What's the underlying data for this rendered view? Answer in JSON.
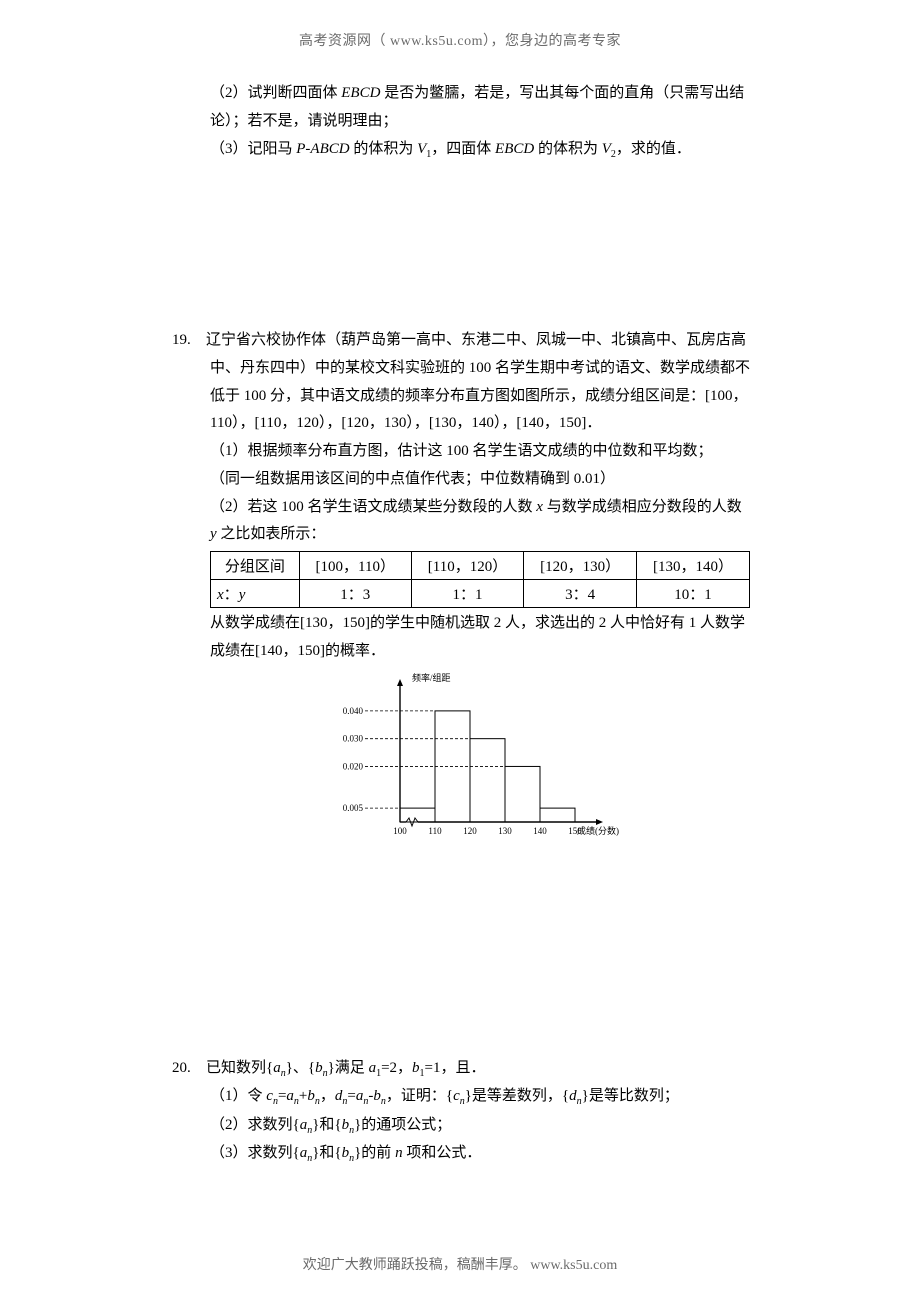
{
  "header": {
    "text": "高考资源网（ www.ks5u.com），您身边的高考专家"
  },
  "footer": {
    "text": "欢迎广大教师踊跃投稿，稿酬丰厚。  www.ks5u.com"
  },
  "q18": {
    "part2": "（2）试判断四面体 EBCD 是否为鳖臑，若是，写出其每个面的直角（只需写出结论）；若不是，请说明理由；",
    "part3": "（3）记阳马 P-ABCD 的体积为 V₁，四面体 EBCD 的体积为 V₂，求的值．"
  },
  "q19": {
    "number": "19.",
    "body_l1": "辽宁省六校协作体（葫芦岛第一高中、东港二中、凤城一中、北镇高中、瓦房店高中、丹东四中）中的某校文科实验班的 100 名学生期中考试的语文、数学成绩都不低于 100 分，其中语文成绩的频率分布直方图如图所示，成绩分组区间是：[100，110），[110，120），[120，130），[130，140），[140，150]．",
    "sub1": "（1）根据频率分布直方图，估计这 100 名学生语文成绩的中位数和平均数；",
    "sub1_note": "（同一组数据用该区间的中点值作代表；中位数精确到 0.01）",
    "sub2": "（2）若这 100 名学生语文成绩某些分数段的人数 x 与数学成绩相应分数段的人数 y 之比如表所示：",
    "table": {
      "header_label": "分组区间",
      "cols": [
        "[100，110）",
        "[110，120）",
        "[120，130）",
        "[130，140）"
      ],
      "row_label": "x：y",
      "row": [
        "1：3",
        "1：1",
        "3：4",
        "10：1"
      ]
    },
    "after_table": "从数学成绩在[130，150]的学生中随机选取 2 人，求选出的 2 人中恰好有 1 人数学成绩在[140，150]的概率．",
    "chart": {
      "type": "histogram",
      "y_label": "频率/组距",
      "x_label": "成绩(分数)",
      "y_ticks": [
        0.005,
        0.02,
        0.03,
        0.04
      ],
      "x_ticks": [
        100,
        110,
        120,
        130,
        140,
        150
      ],
      "bars": [
        {
          "x0": 100,
          "x1": 110,
          "h": 0.005
        },
        {
          "x0": 110,
          "x1": 120,
          "h": 0.04
        },
        {
          "x0": 120,
          "x1": 130,
          "h": 0.03
        },
        {
          "x0": 130,
          "x1": 140,
          "h": 0.02
        },
        {
          "x0": 140,
          "x1": 150,
          "h": 0.005
        }
      ],
      "axis_color": "#000000",
      "dash_color": "#000000",
      "bg": "#ffffff",
      "label_fontsize": 9,
      "tick_fontsize": 9,
      "bar_fill": "none",
      "bar_stroke": "#000000"
    }
  },
  "q20": {
    "number": "20.",
    "body": "已知数列{aₙ}、{bₙ}满足 a₁=2，b₁=1，且．",
    "sub1": "（1）令 cₙ=aₙ+bₙ，dₙ=aₙ-bₙ，证明：{cₙ}是等差数列，{dₙ}是等比数列；",
    "sub2": "（2）求数列{aₙ}和{bₙ}的通项公式；",
    "sub3": "（3）求数列{aₙ}和{bₙ}的前 n 项和公式．"
  }
}
